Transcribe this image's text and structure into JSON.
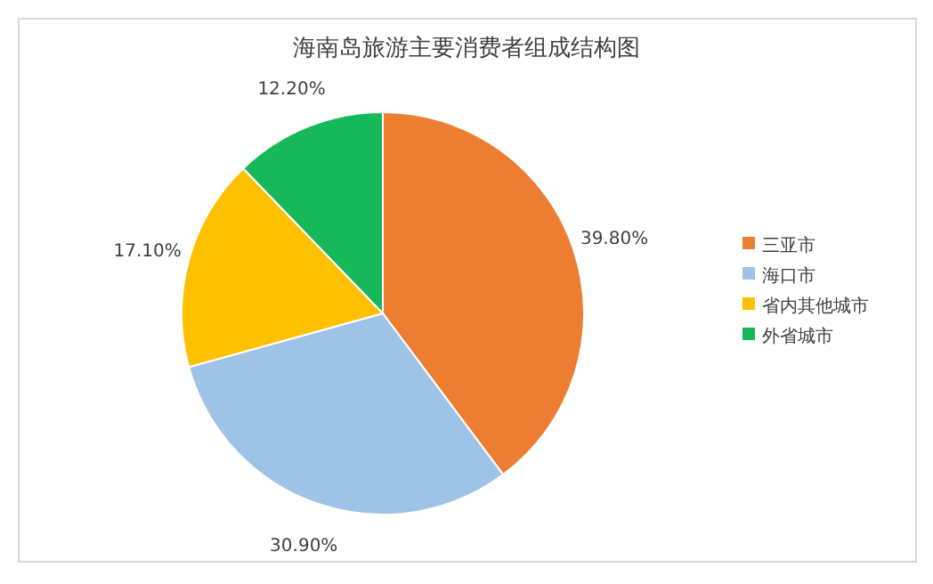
{
  "chart_data": {
    "type": "pie",
    "title": "海南岛旅游主要消费者组成结构图",
    "categories": [
      "三亚市",
      "海口市",
      "省内其他城市",
      "外省城市"
    ],
    "values": [
      39.8,
      30.9,
      17.1,
      12.2
    ],
    "colors": [
      "#ed7d31",
      "#9dc3e6",
      "#ffc000",
      "#16b85a"
    ],
    "value_labels": [
      "39.80%",
      "30.90%",
      "17.10%",
      "12.20%"
    ],
    "legend": "right"
  }
}
